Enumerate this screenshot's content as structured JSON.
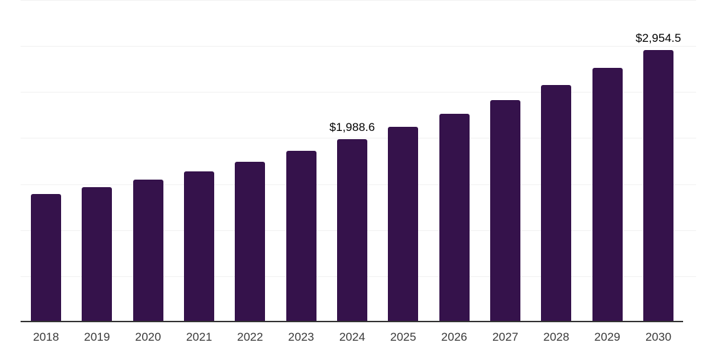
{
  "chart_data": {
    "type": "bar",
    "title": "",
    "xlabel": "",
    "ylabel": "",
    "categories": [
      "2018",
      "2019",
      "2020",
      "2021",
      "2022",
      "2023",
      "2024",
      "2025",
      "2026",
      "2027",
      "2028",
      "2029",
      "2030"
    ],
    "values": [
      1390,
      1465,
      1550,
      1640,
      1745,
      1860,
      1988.6,
      2125,
      2265,
      2410,
      2575,
      2760,
      2954.5
    ],
    "data_labels": {
      "2024": "$1,988.6",
      "2030": "$2,954.5"
    },
    "ylim": [
      0,
      3500
    ],
    "gridline_step": 500,
    "grid": true,
    "legend": false,
    "colors": {
      "bar": "#35124B",
      "axis_line": "#333333",
      "gridline": "#f1f1f1",
      "tick_label": "#3a3a3a",
      "data_label": "#000000"
    }
  }
}
